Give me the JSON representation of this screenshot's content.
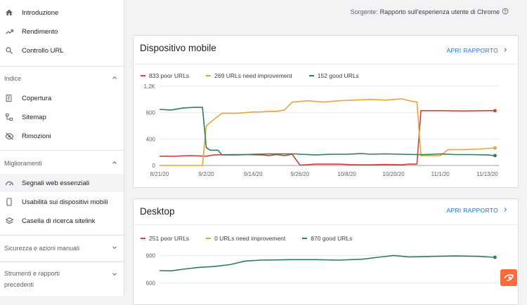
{
  "sidebar": {
    "items": [
      {
        "label": "Introduzione",
        "icon": "home-icon"
      },
      {
        "label": "Rendimento",
        "icon": "trending-up-icon"
      },
      {
        "label": "Controllo URL",
        "icon": "search-icon"
      }
    ],
    "sections": [
      {
        "label": "Indice",
        "items": [
          {
            "label": "Copertura",
            "icon": "coverage-icon"
          },
          {
            "label": "Sitemap",
            "icon": "sitemap-icon"
          },
          {
            "label": "Rimozioni",
            "icon": "removals-icon"
          }
        ]
      },
      {
        "label": "Miglioramenti",
        "items": [
          {
            "label": "Segnali web essenziali",
            "icon": "speed-gauge-icon"
          },
          {
            "label": "Usabilità sui dispositivi mobili",
            "icon": "smartphone-icon"
          },
          {
            "label": "Casella di ricerca sitelink",
            "icon": "layers-icon"
          }
        ]
      },
      {
        "label": "Sicurezza e azioni manuali"
      },
      {
        "label": "Strumenti e rapporti precedenti"
      }
    ]
  },
  "source": {
    "prefix": "Sorgente:",
    "value": "Rapporto sull'esperienza utente di Chrome"
  },
  "colors": {
    "poor": "#c5473b",
    "improve": "#e6a43b",
    "good": "#2e7d57",
    "link": "#1a73e8"
  },
  "cards": [
    {
      "title": "Dispositivo mobile",
      "link": "APRI RAPPORTO",
      "legend": [
        "833 poor URLs",
        "269 URLs need improvement",
        "152 good URLs"
      ]
    },
    {
      "title": "Desktop",
      "link": "APRI RAPPORTO",
      "legend": [
        "251 poor URLs",
        "0 URLs need improvement",
        "870 good URLs"
      ]
    }
  ],
  "chart_data": [
    {
      "type": "line",
      "title": "Dispositivo mobile",
      "x_ticks": [
        "8/21/20",
        "9/2/20",
        "9/14/20",
        "9/26/20",
        "10/8/20",
        "10/20/20",
        "11/1/20",
        "11/13/20"
      ],
      "y_ticks": [
        "0",
        "400",
        "800",
        "1.2K"
      ],
      "ylim": [
        0,
        1200
      ],
      "xlim": [
        0,
        87
      ],
      "series": [
        {
          "name": "833 poor URLs",
          "color": "#c5473b",
          "points": [
            [
              0,
              140
            ],
            [
              4,
              140
            ],
            [
              8,
              150
            ],
            [
              10,
              145
            ],
            [
              12,
              140
            ],
            [
              14,
              160
            ],
            [
              18,
              165
            ],
            [
              22,
              165
            ],
            [
              26,
              160
            ],
            [
              28,
              150
            ],
            [
              30,
              165
            ],
            [
              32,
              150
            ],
            [
              34,
              170
            ],
            [
              36,
              5
            ],
            [
              40,
              20
            ],
            [
              46,
              20
            ],
            [
              50,
              10
            ],
            [
              54,
              10
            ],
            [
              58,
              15
            ],
            [
              62,
              10
            ],
            [
              64,
              20
            ],
            [
              66,
              20
            ],
            [
              67,
              830
            ],
            [
              72,
              830
            ],
            [
              78,
              825
            ],
            [
              84,
              830
            ],
            [
              86,
              830
            ]
          ]
        },
        {
          "name": "269 URLs need improvement",
          "color": "#e6a43b",
          "points": [
            [
              0,
              0
            ],
            [
              8,
              0
            ],
            [
              11,
              0
            ],
            [
              12,
              600
            ],
            [
              14,
              700
            ],
            [
              16,
              790
            ],
            [
              20,
              790
            ],
            [
              24,
              810
            ],
            [
              26,
              810
            ],
            [
              28,
              820
            ],
            [
              30,
              820
            ],
            [
              32,
              840
            ],
            [
              34,
              960
            ],
            [
              38,
              980
            ],
            [
              42,
              960
            ],
            [
              46,
              980
            ],
            [
              50,
              990
            ],
            [
              54,
              1000
            ],
            [
              58,
              990
            ],
            [
              62,
              1010
            ],
            [
              64,
              980
            ],
            [
              66,
              960
            ],
            [
              67,
              150
            ],
            [
              70,
              150
            ],
            [
              72,
              150
            ],
            [
              74,
              240
            ],
            [
              78,
              240
            ],
            [
              82,
              250
            ],
            [
              86,
              265
            ]
          ]
        },
        {
          "name": "152 good URLs",
          "color": "#2e7d57",
          "points": [
            [
              0,
              850
            ],
            [
              3,
              840
            ],
            [
              6,
              870
            ],
            [
              9,
              880
            ],
            [
              11,
              880
            ],
            [
              12,
              270
            ],
            [
              13,
              230
            ],
            [
              15,
              230
            ],
            [
              16,
              160
            ],
            [
              20,
              160
            ],
            [
              24,
              170
            ],
            [
              28,
              175
            ],
            [
              32,
              175
            ],
            [
              35,
              175
            ],
            [
              36,
              170
            ],
            [
              40,
              160
            ],
            [
              44,
              170
            ],
            [
              48,
              170
            ],
            [
              52,
              180
            ],
            [
              54,
              170
            ],
            [
              58,
              175
            ],
            [
              62,
              170
            ],
            [
              66,
              165
            ],
            [
              68,
              165
            ],
            [
              72,
              175
            ],
            [
              76,
              165
            ],
            [
              80,
              165
            ],
            [
              84,
              160
            ],
            [
              86,
              150
            ]
          ]
        }
      ]
    },
    {
      "type": "line",
      "title": "Desktop",
      "y_ticks": [
        "600",
        "900"
      ],
      "ylim": [
        520,
        980
      ],
      "xlim": [
        0,
        87
      ],
      "series": [
        {
          "name": "870 good URLs",
          "color": "#2e7d57",
          "points": [
            [
              0,
              735
            ],
            [
              3,
              732
            ],
            [
              6,
              750
            ],
            [
              10,
              770
            ],
            [
              14,
              780
            ],
            [
              18,
              800
            ],
            [
              22,
              840
            ],
            [
              26,
              850
            ],
            [
              30,
              852
            ],
            [
              34,
              855
            ],
            [
              40,
              855
            ],
            [
              46,
              850
            ],
            [
              52,
              860
            ],
            [
              56,
              880
            ],
            [
              60,
              900
            ],
            [
              64,
              885
            ],
            [
              70,
              890
            ],
            [
              76,
              895
            ],
            [
              82,
              890
            ],
            [
              86,
              880
            ]
          ]
        }
      ]
    }
  ]
}
